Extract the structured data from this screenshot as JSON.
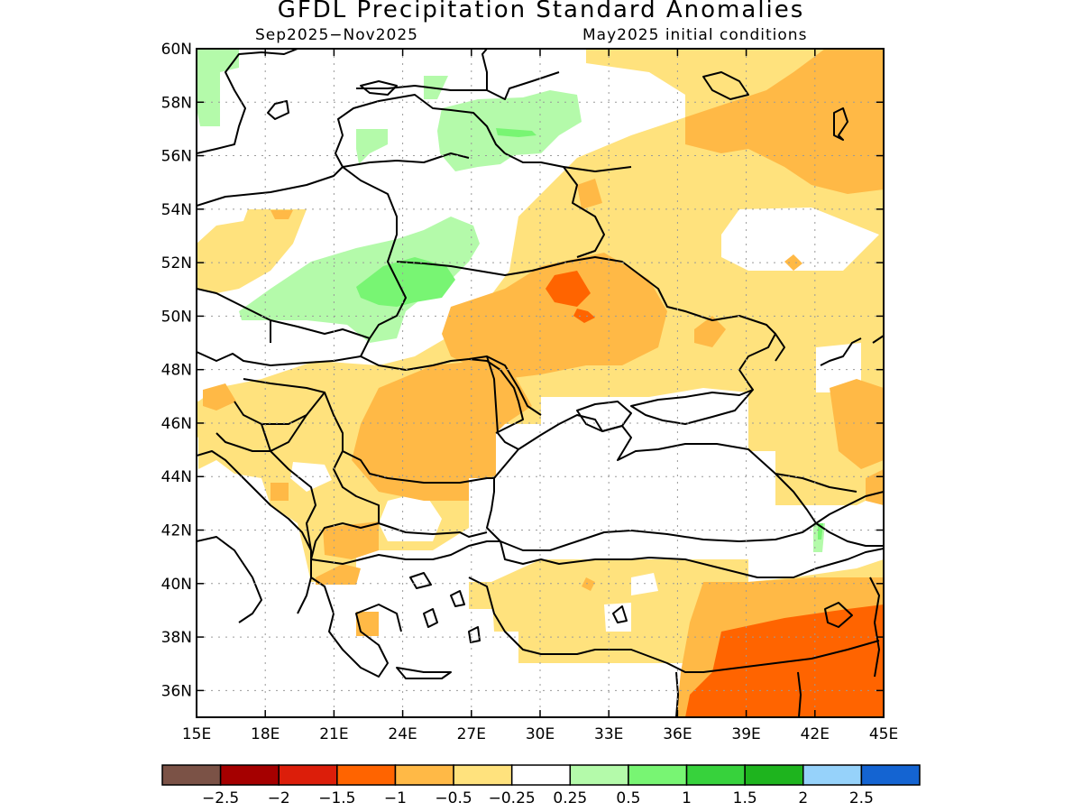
{
  "title": "GFDL Precipitation Standard Anomalies",
  "period": "Sep2025−Nov2025",
  "initial_conditions": "May2025 initial conditions",
  "lat_labels": [
    "60N",
    "58N",
    "56N",
    "54N",
    "52N",
    "50N",
    "48N",
    "46N",
    "44N",
    "42N",
    "40N",
    "38N",
    "36N"
  ],
  "lon_labels": [
    "15E",
    "18E",
    "21E",
    "24E",
    "27E",
    "30E",
    "33E",
    "36E",
    "39E",
    "42E",
    "45E"
  ],
  "colorbar": {
    "colors": [
      "#7b5246",
      "#a50000",
      "#dc1e0a",
      "#ff6400",
      "#ffb946",
      "#ffe27d",
      "#ffffff",
      "#b4faaa",
      "#78f573",
      "#37d23c",
      "#1eb41e",
      "#96d2fa",
      "#1464d2"
    ],
    "labels": [
      "−2.5",
      "−2",
      "−1.5",
      "−1",
      "−0.5",
      "−0.25",
      "0.25",
      "0.5",
      "1",
      "1.5",
      "2",
      "2.5"
    ]
  },
  "map": {
    "lon_range": [
      15,
      45
    ],
    "lat_range": [
      35,
      60
    ],
    "palette": {
      "light_yellow": "#ffe27d",
      "orange": "#ffb946",
      "dark_orange": "#ff6400",
      "red": "#dc1e0a",
      "light_green": "#b4faaa",
      "green": "#78f573"
    }
  }
}
